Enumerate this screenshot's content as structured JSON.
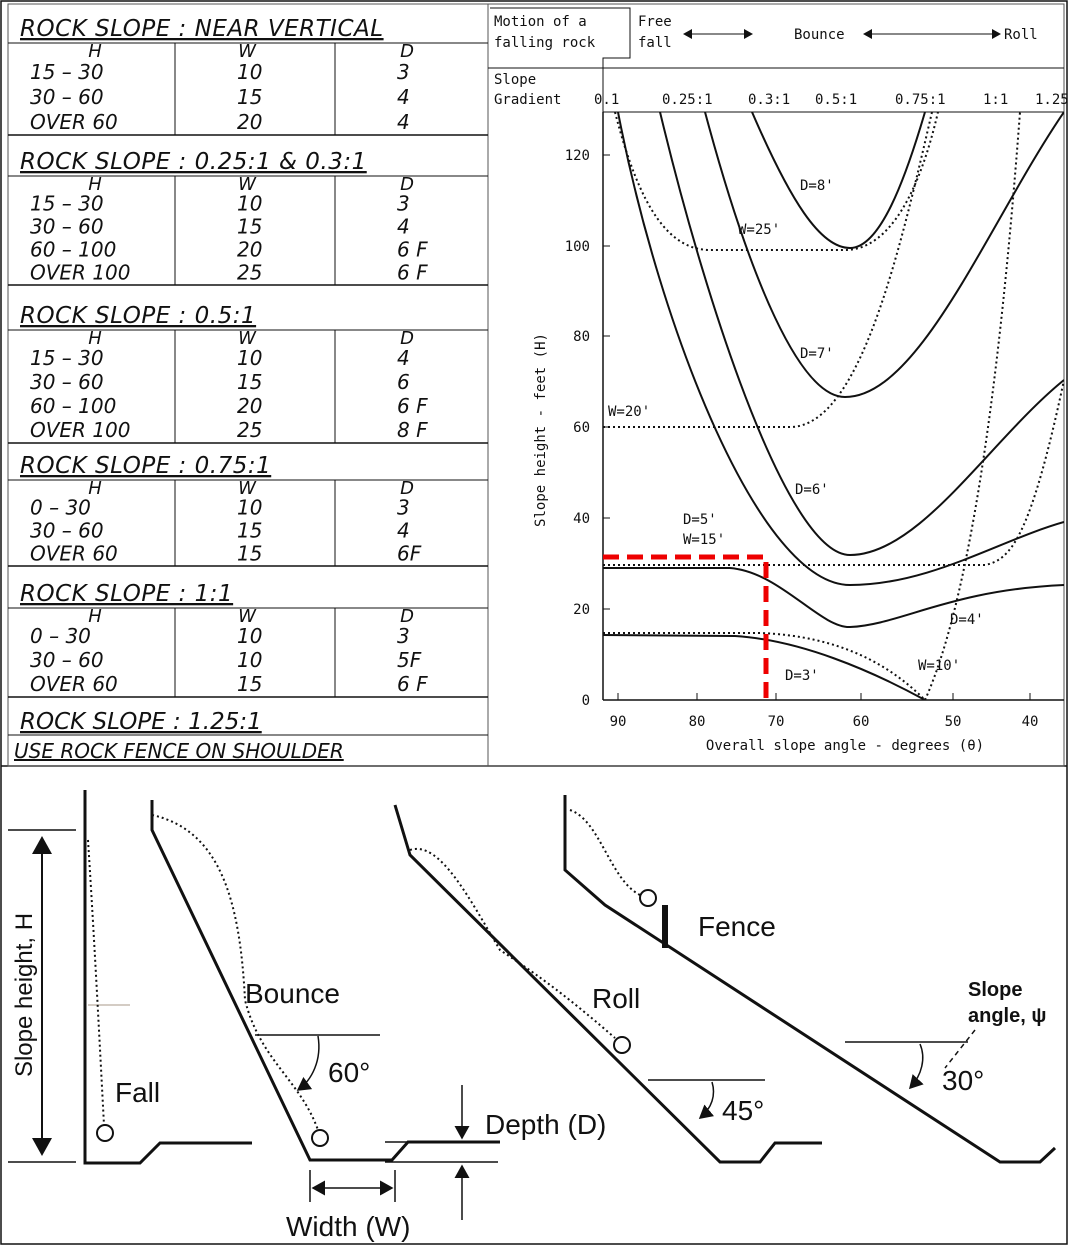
{
  "tables": [
    {
      "title": "ROCK SLOPE : NEAR VERTICAL",
      "header": [
        "H",
        "W",
        "D"
      ],
      "rows": [
        [
          "15 – 30",
          "10",
          "3"
        ],
        [
          "30 – 60",
          "15",
          "4"
        ],
        [
          "OVER 60",
          "20",
          "4"
        ]
      ]
    },
    {
      "title": "ROCK SLOPE : 0.25:1 & 0.3:1",
      "header": [
        "H",
        "W",
        "D"
      ],
      "rows": [
        [
          "15 – 30",
          "10",
          "3"
        ],
        [
          "30 – 60",
          "15",
          "4"
        ],
        [
          "60 – 100",
          "20",
          "6 F"
        ],
        [
          "OVER 100",
          "25",
          "6 F"
        ]
      ]
    },
    {
      "title": "ROCK SLOPE : 0.5:1",
      "header": [
        "H",
        "W",
        "D"
      ],
      "rows": [
        [
          "15 – 30",
          "10",
          "4"
        ],
        [
          "30 – 60",
          "15",
          "6"
        ],
        [
          "60 – 100",
          "20",
          "6 F"
        ],
        [
          "OVER 100",
          "25",
          "8 F"
        ]
      ]
    },
    {
      "title": "ROCK SLOPE : 0.75:1",
      "header": [
        "H",
        "W",
        "D"
      ],
      "rows": [
        [
          "0 – 30",
          "10",
          "3"
        ],
        [
          "30 – 60",
          "15",
          "4"
        ],
        [
          "OVER 60",
          "15",
          "6F"
        ]
      ]
    },
    {
      "title": "ROCK SLOPE : 1:1",
      "header": [
        "H",
        "W",
        "D"
      ],
      "rows": [
        [
          "0 – 30",
          "10",
          "3"
        ],
        [
          "30 – 60",
          "10",
          "5F"
        ],
        [
          "OVER 60",
          "15",
          "6 F"
        ]
      ]
    }
  ],
  "final_title": "ROCK SLOPE : 1.25:1",
  "final_note": "USE ROCK FENCE ON SHOULDER",
  "chart": {
    "motion_label": [
      "Motion of a",
      "falling rock"
    ],
    "free_fall": [
      "Free",
      "fall"
    ],
    "bounce": "Bounce",
    "roll": "Roll",
    "gradient_label": [
      "Slope",
      "Gradient"
    ],
    "gradients": [
      "0.1",
      "0.25:1",
      "0.3:1",
      "0.5:1",
      "0.75:1",
      "1:1",
      "1.25"
    ],
    "y_label": "Slope height - feet (H)",
    "y_ticks": [
      "120",
      "100",
      "80",
      "60",
      "40",
      "20",
      "0"
    ],
    "x_ticks": [
      "90",
      "80",
      "70",
      "60",
      "50",
      "40"
    ],
    "x_label": "Overall slope angle - degrees (θ)",
    "curve_labels": [
      "D=8'",
      "W=25'",
      "D=7'",
      "W=20'",
      "D=6'",
      "D=5'",
      "W=15'",
      "D=4'",
      "W=10'",
      "D=3'"
    ]
  },
  "diagram": {
    "slope_height": "Slope height, H",
    "fall": "Fall",
    "bounce": "Bounce",
    "angle_60": "60°",
    "depth": "Depth (D)",
    "width": "Width (W)",
    "roll": "Roll",
    "angle_45": "45°",
    "fence": "Fence",
    "slope_angle": [
      "Slope",
      "angle, ψ"
    ],
    "angle_30": "30°"
  }
}
